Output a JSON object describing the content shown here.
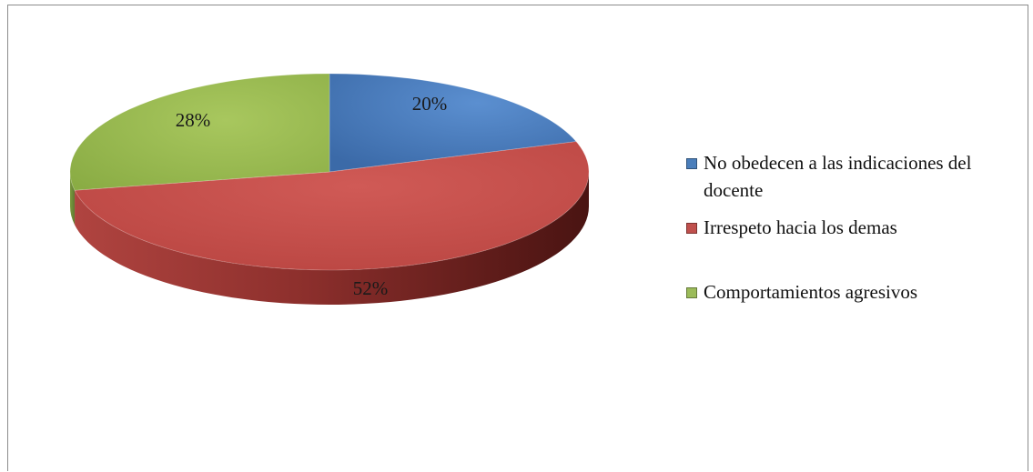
{
  "chart_data": {
    "type": "pie",
    "title": "",
    "categories": [
      "No obedecen a las indicaciones del docente",
      "Irrespeto hacia los demas",
      "Comportamientos agresivos"
    ],
    "values": [
      20,
      52,
      28
    ],
    "data_labels": [
      "20%",
      "52%",
      "28%"
    ],
    "colors": [
      "#4a7ebb",
      "#c0504d",
      "#9bbb59"
    ],
    "legend": "right",
    "style": "3d"
  }
}
